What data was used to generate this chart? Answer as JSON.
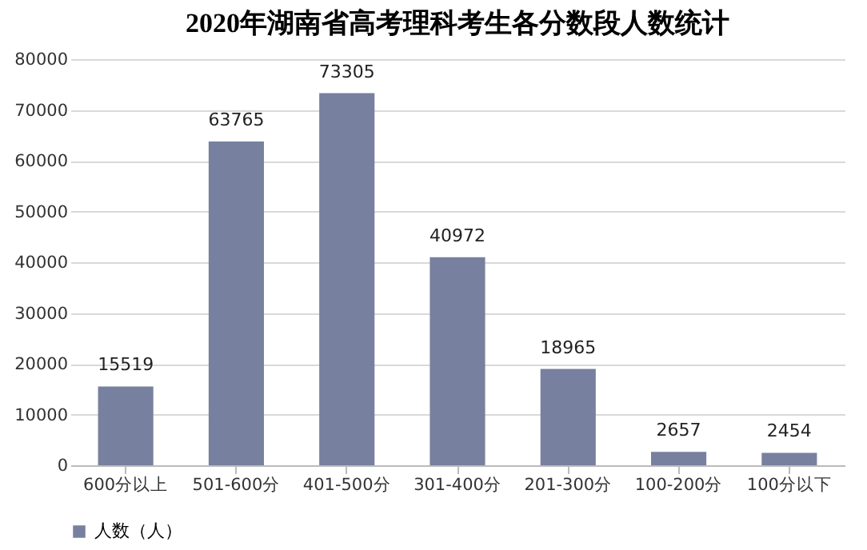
{
  "chart_data": {
    "type": "bar",
    "title": "2020年湖南省高考理科考生各分数段人数统计",
    "categories": [
      "600分以上",
      "501-600分",
      "401-500分",
      "301-400分",
      "201-300分",
      "100-200分",
      "100分以下"
    ],
    "series": [
      {
        "name": "人数（人）",
        "color": "#77809f",
        "values": [
          15519,
          63765,
          73305,
          40972,
          18965,
          2657,
          2454
        ]
      }
    ],
    "ylim": [
      0,
      80000
    ],
    "yticks": [
      0,
      10000,
      20000,
      30000,
      40000,
      50000,
      60000,
      70000,
      80000
    ],
    "grid": "y",
    "legend": "bottom",
    "data_labels": true
  }
}
